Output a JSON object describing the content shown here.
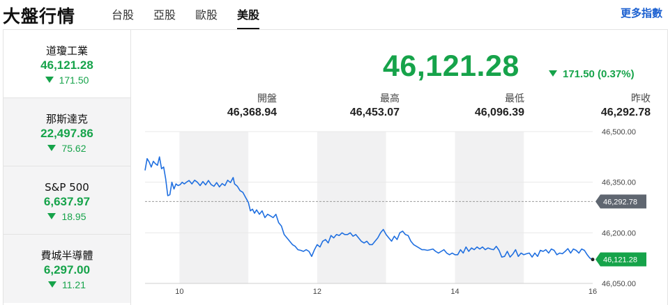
{
  "header": {
    "title": "大盤行情",
    "tabs": [
      {
        "label": "台股"
      },
      {
        "label": "亞股"
      },
      {
        "label": "歐股"
      },
      {
        "label": "美股"
      }
    ],
    "active_tab": "美股",
    "more_link": "更多指數"
  },
  "sidebar": {
    "items": [
      {
        "name": "道瓊工業",
        "value": "46,121.28",
        "change": "171.50"
      },
      {
        "name": "那斯達克",
        "value": "22,497.86",
        "change": "75.62"
      },
      {
        "name": "S&P 500",
        "value": "6,637.97",
        "change": "18.95"
      },
      {
        "name": "費城半導體",
        "value": "6,297.00",
        "change": "11.21"
      }
    ]
  },
  "quote": {
    "price": "46,121.28",
    "change": "171.50 (0.37%)",
    "stats": [
      {
        "label": "開盤",
        "value": "46,368.94"
      },
      {
        "label": "最高",
        "value": "46,453.07"
      },
      {
        "label": "最低",
        "value": "46,096.39"
      },
      {
        "label": "昨收",
        "value": "46,292.78"
      }
    ]
  },
  "colors": {
    "down": "#16a34a",
    "line": "#1f6fe0",
    "prev_close_tag": "#5f6670",
    "current_tag": "#16a34a",
    "shade": "#f1f1f2",
    "link": "#1a5fd0"
  },
  "chart_data": {
    "type": "line",
    "x_ticks": [
      "10",
      "12",
      "14",
      "16"
    ],
    "y_ticks": [
      "46,500.00",
      "46,350.00",
      "46,200.00",
      "46,050.00"
    ],
    "x_range": [
      9.5,
      16
    ],
    "ylim": [
      46050,
      46500
    ],
    "prev_close": 46292.78,
    "prev_close_label": "46,292.78",
    "current": 46121.28,
    "current_label": "46,121.28",
    "shaded_hours": [
      [
        10,
        11
      ],
      [
        12,
        13
      ],
      [
        14,
        15
      ]
    ],
    "series": [
      {
        "values": [
          [
            9.5,
            46385
          ],
          [
            9.53,
            46420
          ],
          [
            9.56,
            46410
          ],
          [
            9.59,
            46395
          ],
          [
            9.62,
            46412
          ],
          [
            9.65,
            46405
          ],
          [
            9.68,
            46400
          ],
          [
            9.71,
            46425
          ],
          [
            9.74,
            46390
          ],
          [
            9.77,
            46395
          ],
          [
            9.8,
            46360
          ],
          [
            9.83,
            46310
          ],
          [
            9.86,
            46313
          ],
          [
            9.89,
            46350
          ],
          [
            9.92,
            46330
          ],
          [
            9.95,
            46345
          ],
          [
            9.98,
            46340
          ],
          [
            10.01,
            46343
          ],
          [
            10.04,
            46350
          ],
          [
            10.07,
            46345
          ],
          [
            10.1,
            46350
          ],
          [
            10.14,
            46355
          ],
          [
            10.18,
            46345
          ],
          [
            10.22,
            46356
          ],
          [
            10.26,
            46350
          ],
          [
            10.3,
            46340
          ],
          [
            10.34,
            46352
          ],
          [
            10.38,
            46342
          ],
          [
            10.42,
            46355
          ],
          [
            10.46,
            46343
          ],
          [
            10.5,
            46338
          ],
          [
            10.54,
            46349
          ],
          [
            10.58,
            46336
          ],
          [
            10.62,
            46346
          ],
          [
            10.66,
            46340
          ],
          [
            10.7,
            46356
          ],
          [
            10.74,
            46349
          ],
          [
            10.78,
            46364
          ],
          [
            10.8,
            46345
          ],
          [
            10.84,
            46338
          ],
          [
            10.88,
            46325
          ],
          [
            10.92,
            46320
          ],
          [
            10.96,
            46305
          ],
          [
            11.0,
            46290
          ],
          [
            11.03,
            46265
          ],
          [
            11.06,
            46270
          ],
          [
            11.09,
            46258
          ],
          [
            11.12,
            46268
          ],
          [
            11.16,
            46255
          ],
          [
            11.2,
            46265
          ],
          [
            11.24,
            46245
          ],
          [
            11.28,
            46255
          ],
          [
            11.32,
            46250
          ],
          [
            11.36,
            46245
          ],
          [
            11.4,
            46255
          ],
          [
            11.44,
            46230
          ],
          [
            11.48,
            46220
          ],
          [
            11.52,
            46195
          ],
          [
            11.56,
            46185
          ],
          [
            11.6,
            46175
          ],
          [
            11.64,
            46165
          ],
          [
            11.68,
            46160
          ],
          [
            11.72,
            46150
          ],
          [
            11.76,
            46148
          ],
          [
            11.8,
            46145
          ],
          [
            11.84,
            46150
          ],
          [
            11.88,
            46145
          ],
          [
            11.92,
            46130
          ],
          [
            11.96,
            46150
          ],
          [
            12.0,
            46165
          ],
          [
            12.04,
            46158
          ],
          [
            12.08,
            46175
          ],
          [
            12.12,
            46180
          ],
          [
            12.16,
            46170
          ],
          [
            12.2,
            46192
          ],
          [
            12.24,
            46185
          ],
          [
            12.28,
            46195
          ],
          [
            12.32,
            46192
          ],
          [
            12.36,
            46200
          ],
          [
            12.4,
            46195
          ],
          [
            12.44,
            46195
          ],
          [
            12.48,
            46200
          ],
          [
            12.52,
            46190
          ],
          [
            12.56,
            46195
          ],
          [
            12.6,
            46185
          ],
          [
            12.64,
            46175
          ],
          [
            12.68,
            46170
          ],
          [
            12.72,
            46175
          ],
          [
            12.76,
            46165
          ],
          [
            12.8,
            46165
          ],
          [
            12.84,
            46175
          ],
          [
            12.88,
            46185
          ],
          [
            12.92,
            46200
          ],
          [
            12.96,
            46210
          ],
          [
            13.0,
            46195
          ],
          [
            13.04,
            46185
          ],
          [
            13.08,
            46175
          ],
          [
            13.12,
            46190
          ],
          [
            13.16,
            46180
          ],
          [
            13.2,
            46200
          ],
          [
            13.24,
            46205
          ],
          [
            13.28,
            46195
          ],
          [
            13.32,
            46192
          ],
          [
            13.36,
            46175
          ],
          [
            13.4,
            46165
          ],
          [
            13.44,
            46160
          ],
          [
            13.48,
            46155
          ],
          [
            13.52,
            46150
          ],
          [
            13.56,
            46150
          ],
          [
            13.6,
            46148
          ],
          [
            13.64,
            46150
          ],
          [
            13.68,
            46152
          ],
          [
            13.72,
            46145
          ],
          [
            13.76,
            46140
          ],
          [
            13.8,
            46145
          ],
          [
            13.84,
            46150
          ],
          [
            13.88,
            46140
          ],
          [
            13.92,
            46135
          ],
          [
            13.96,
            46140
          ],
          [
            14.0,
            46135
          ],
          [
            14.04,
            46135
          ],
          [
            14.08,
            46150
          ],
          [
            14.12,
            46140
          ],
          [
            14.16,
            46158
          ],
          [
            14.2,
            46145
          ],
          [
            14.24,
            46155
          ],
          [
            14.28,
            46150
          ],
          [
            14.32,
            46158
          ],
          [
            14.36,
            46152
          ],
          [
            14.4,
            46158
          ],
          [
            14.44,
            46150
          ],
          [
            14.48,
            46155
          ],
          [
            14.52,
            46152
          ],
          [
            14.56,
            46150
          ],
          [
            14.6,
            46160
          ],
          [
            14.64,
            46148
          ],
          [
            14.68,
            46128
          ],
          [
            14.72,
            46130
          ],
          [
            14.76,
            46145
          ],
          [
            14.8,
            46128
          ],
          [
            14.84,
            46137
          ],
          [
            14.88,
            46150
          ],
          [
            14.92,
            46130
          ],
          [
            14.96,
            46140
          ],
          [
            15.0,
            46135
          ],
          [
            15.04,
            46138
          ],
          [
            15.08,
            46140
          ],
          [
            15.12,
            46128
          ],
          [
            15.16,
            46140
          ],
          [
            15.2,
            46130
          ],
          [
            15.24,
            46148
          ],
          [
            15.28,
            46145
          ],
          [
            15.32,
            46150
          ],
          [
            15.36,
            46140
          ],
          [
            15.4,
            46152
          ],
          [
            15.44,
            46148
          ],
          [
            15.48,
            46135
          ],
          [
            15.52,
            46140
          ],
          [
            15.56,
            46138
          ],
          [
            15.6,
            46145
          ],
          [
            15.64,
            46153
          ],
          [
            15.68,
            46140
          ],
          [
            15.72,
            46152
          ],
          [
            15.76,
            46148
          ],
          [
            15.8,
            46140
          ],
          [
            15.84,
            46152
          ],
          [
            15.88,
            46148
          ],
          [
            15.92,
            46135
          ],
          [
            15.96,
            46125
          ],
          [
            16.0,
            46121
          ]
        ]
      }
    ]
  }
}
